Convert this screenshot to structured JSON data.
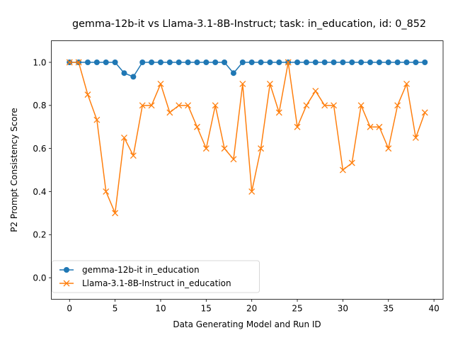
{
  "chart_data": {
    "type": "line",
    "title": "gemma-12b-it vs Llama-3.1-8B-Instruct; task: in_education, id: 0_852",
    "xlabel": "Data Generating Model and Run ID",
    "ylabel": "P2 Prompt Consistency Score",
    "xlim": [
      -2,
      41
    ],
    "ylim": [
      -0.1,
      1.1
    ],
    "xticks": [
      0,
      5,
      10,
      15,
      20,
      25,
      30,
      35,
      40
    ],
    "yticks": [
      0.0,
      0.2,
      0.4,
      0.6,
      0.8,
      1.0
    ],
    "xtick_labels": [
      "0",
      "5",
      "10",
      "15",
      "20",
      "25",
      "30",
      "35",
      "40"
    ],
    "ytick_labels": [
      "0.0",
      "0.2",
      "0.4",
      "0.6",
      "0.8",
      "1.0"
    ],
    "legend_position": "lower-left",
    "grid": false,
    "x": [
      0,
      1,
      2,
      3,
      4,
      5,
      6,
      7,
      8,
      9,
      10,
      11,
      12,
      13,
      14,
      15,
      16,
      17,
      18,
      19,
      20,
      21,
      22,
      23,
      24,
      25,
      26,
      27,
      28,
      29,
      30,
      31,
      32,
      33,
      34,
      35,
      36,
      37,
      38,
      39
    ],
    "series": [
      {
        "name": "gemma-12b-it in_education",
        "color": "#1f77b4",
        "marker": "circle",
        "values": [
          1.0,
          1.0,
          1.0,
          1.0,
          1.0,
          1.0,
          0.95,
          0.933,
          1.0,
          1.0,
          1.0,
          1.0,
          1.0,
          1.0,
          1.0,
          1.0,
          1.0,
          1.0,
          0.95,
          1.0,
          1.0,
          1.0,
          1.0,
          1.0,
          1.0,
          1.0,
          1.0,
          1.0,
          1.0,
          1.0,
          1.0,
          1.0,
          1.0,
          1.0,
          1.0,
          1.0,
          1.0,
          1.0,
          1.0,
          1.0
        ]
      },
      {
        "name": "Llama-3.1-8B-Instruct in_education",
        "color": "#ff7f0e",
        "marker": "x",
        "values": [
          1.0,
          1.0,
          0.85,
          0.733,
          0.4,
          0.3,
          0.65,
          0.567,
          0.8,
          0.8,
          0.9,
          0.767,
          0.8,
          0.8,
          0.7,
          0.6,
          0.8,
          0.6,
          0.55,
          0.9,
          0.4,
          0.6,
          0.9,
          0.767,
          1.0,
          0.7,
          0.8,
          0.867,
          0.8,
          0.8,
          0.5,
          0.533,
          0.8,
          0.7,
          0.7,
          0.6,
          0.8,
          0.9,
          0.65,
          0.767
        ]
      }
    ]
  }
}
